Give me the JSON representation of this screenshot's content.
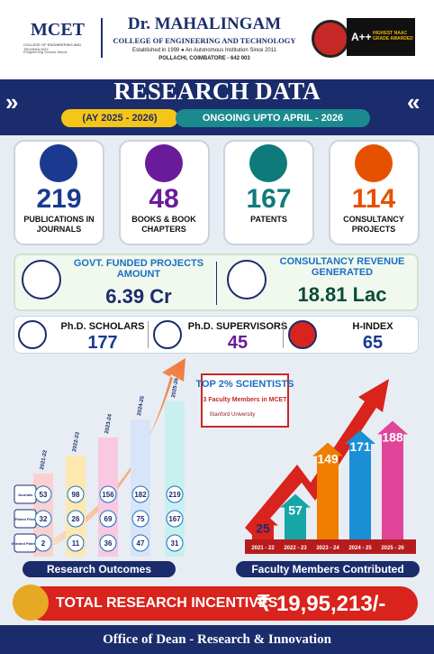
{
  "header": {
    "logo": "MCET",
    "logo_caption": "COLLEGE OF ENGINEERING AND TECHNOLOGY",
    "logo_tagline": "Enlightening Scholar Minds",
    "name": "Dr. MAHALINGAM",
    "subtitle": "COLLEGE OF ENGINEERING AND TECHNOLOGY",
    "established": "Established in 1998 ● An Autonomous Institution Since 2011",
    "address": "POLLACHI, COIMBATORE - 642 003",
    "badge_grade": "A++",
    "badge_text": "HIGHEST NAAC GRADE AWARDED"
  },
  "title": "RESEARCH DATA",
  "period": "(AY 2025 - 2026)",
  "status": "ONGOING UPTO APRIL - 2026",
  "stats": [
    {
      "value": 219,
      "label": "PUBLICATIONS IN JOURNALS"
    },
    {
      "value": 48,
      "label": "BOOKS & BOOK CHAPTERS"
    },
    {
      "value": 167,
      "label": "PATENTS"
    },
    {
      "value": 114,
      "label": "CONSULTANCY PROJECTS"
    }
  ],
  "funding": [
    {
      "label": "GOVT. FUNDED PROJECTS AMOUNT",
      "value": "6.39 Cr"
    },
    {
      "label": "CONSULTANCY REVENUE GENERATED",
      "value": "18.81 Lac"
    }
  ],
  "people": [
    {
      "label": "Ph.D. SCHOLARS",
      "value": 177
    },
    {
      "label": "Ph.D. SUPERVISORS",
      "value": 45
    },
    {
      "label": "H-INDEX",
      "value": 65
    }
  ],
  "outcomes": {
    "title": "Research Outcomes",
    "years": [
      "2021-22",
      "2022-23",
      "2023-24",
      "2024-25",
      "2025-26"
    ],
    "rows": [
      {
        "label": "Journals",
        "values": [
          53,
          98,
          156,
          182,
          219
        ]
      },
      {
        "label": "Patent Filed",
        "values": [
          32,
          26,
          69,
          75,
          167
        ]
      },
      {
        "label": "Granted Patents",
        "values": [
          2,
          11,
          36,
          47,
          31
        ]
      }
    ]
  },
  "faculty": {
    "title": "Faculty Members Contributed",
    "years": [
      "2021 - 22",
      "2022 - 23",
      "2023 - 24",
      "2024 - 25",
      "2025 - 26"
    ],
    "values": [
      25,
      57,
      149,
      171,
      188
    ]
  },
  "recognition": {
    "title": "TOP 2% SCIENTISTS",
    "text": "3 Faculty Members in MCET",
    "source": "Stanford University"
  },
  "incentives": {
    "label": "TOTAL RESEARCH INCENTIVES",
    "value": "₹ 19,95,213/-"
  },
  "footer": "Office of Dean - Research & Innovation"
}
